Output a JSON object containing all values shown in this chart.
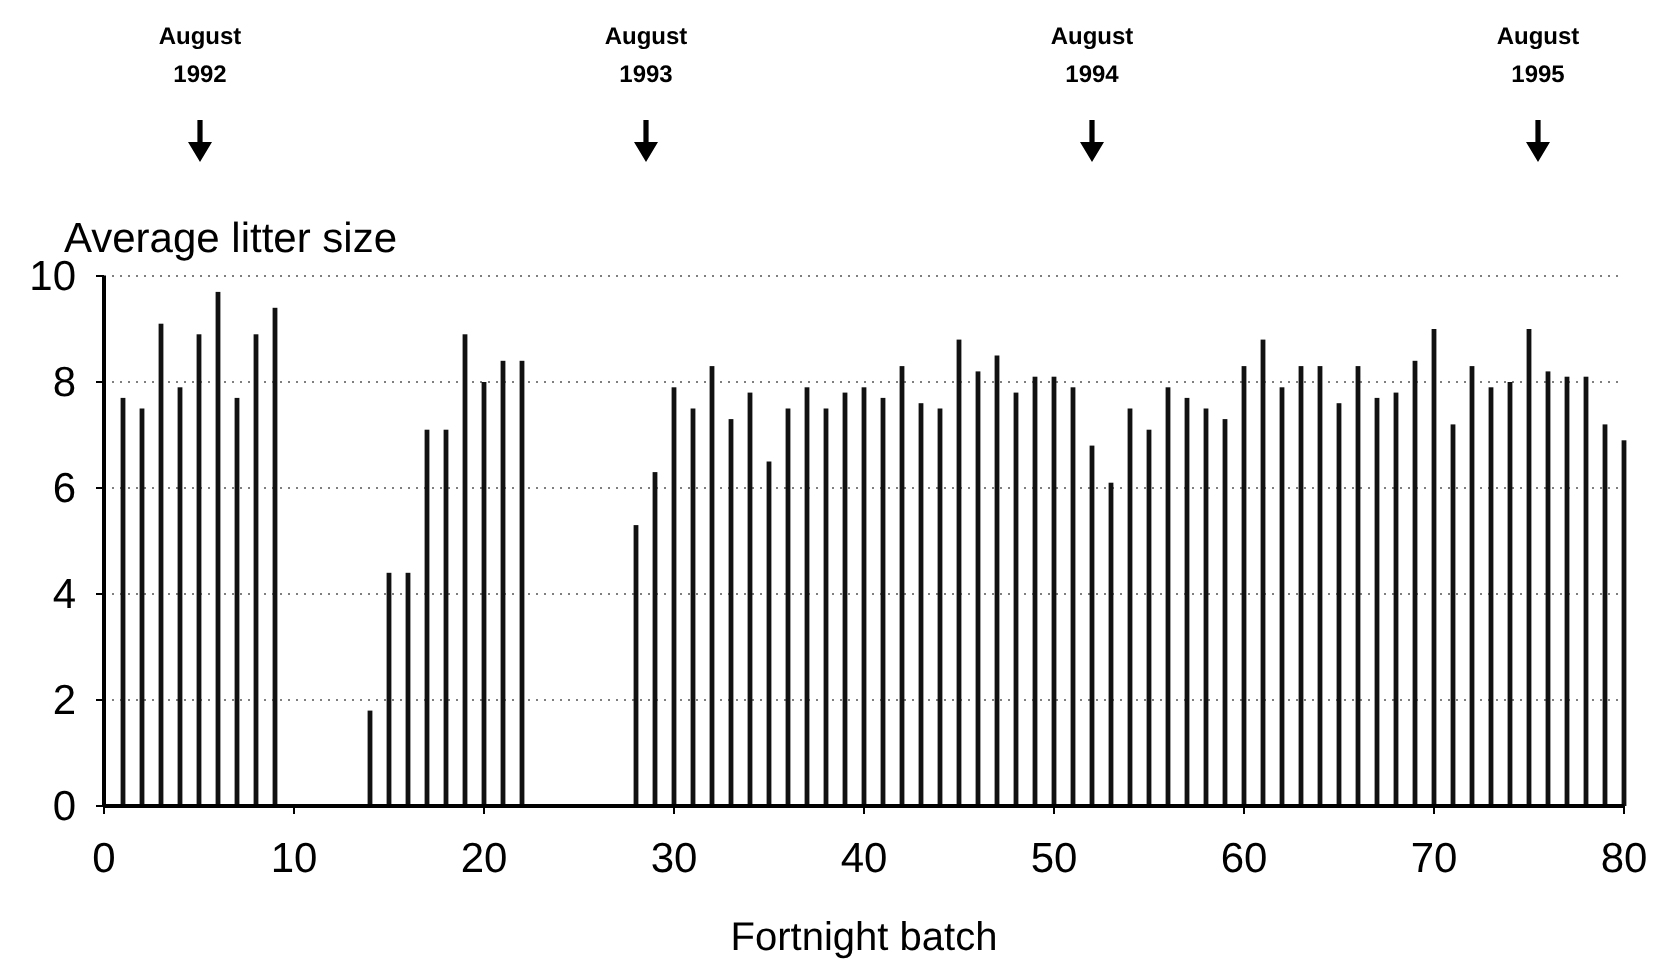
{
  "chart_data": {
    "type": "bar",
    "xlabel": "Fortnight batch",
    "ylabel": "Average litter size",
    "x": [
      1,
      2,
      3,
      4,
      5,
      6,
      7,
      8,
      9,
      10,
      11,
      12,
      13,
      14,
      15,
      16,
      17,
      18,
      19,
      20,
      21,
      22,
      23,
      24,
      25,
      26,
      27,
      28,
      29,
      30,
      31,
      32,
      33,
      34,
      35,
      36,
      37,
      38,
      39,
      40,
      41,
      42,
      43,
      44,
      45,
      46,
      47,
      48,
      49,
      50,
      51,
      52,
      53,
      54,
      55,
      56,
      57,
      58,
      59,
      60,
      61,
      62,
      63,
      64,
      65,
      66,
      67,
      68,
      69,
      70,
      71,
      72,
      73,
      74,
      75,
      76,
      77,
      78,
      79,
      80
    ],
    "values": [
      7.7,
      7.5,
      9.1,
      7.9,
      8.9,
      9.7,
      7.7,
      8.9,
      9.4,
      null,
      null,
      null,
      null,
      1.8,
      4.4,
      4.4,
      7.1,
      7.1,
      8.9,
      8.0,
      8.4,
      8.4,
      null,
      null,
      null,
      null,
      null,
      5.3,
      6.3,
      7.9,
      7.5,
      8.3,
      7.3,
      7.8,
      6.5,
      7.5,
      7.9,
      7.5,
      7.8,
      7.9,
      7.7,
      8.3,
      7.6,
      7.5,
      8.8,
      8.2,
      8.5,
      7.8,
      8.1,
      8.1,
      7.9,
      6.8,
      6.1,
      7.5,
      7.1,
      7.9,
      7.7,
      7.5,
      7.3,
      8.3,
      8.8,
      7.9,
      8.3,
      8.3,
      7.6,
      8.3,
      7.7,
      7.8,
      8.4,
      9.0,
      7.2,
      8.3,
      7.9,
      8.0,
      9.0,
      8.2,
      8.1,
      8.1,
      7.2,
      6.9
    ],
    "color": "#111111",
    "xlim": [
      0,
      80
    ],
    "xticks": [
      0,
      10,
      20,
      30,
      40,
      50,
      60,
      70,
      80
    ],
    "ylim": [
      0,
      10
    ],
    "yticks": [
      0,
      2,
      4,
      6,
      8,
      10
    ],
    "grid": "y",
    "annotations": [
      "August 1992",
      "August 1993",
      "August 1994",
      "August 1995"
    ]
  }
}
